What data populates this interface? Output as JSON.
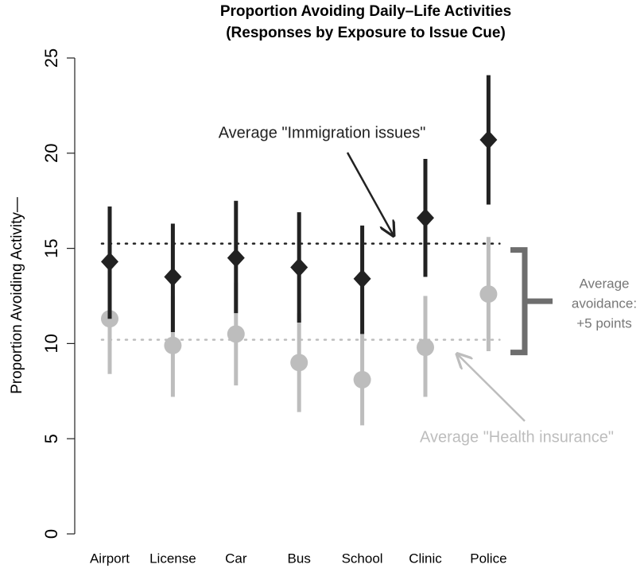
{
  "chart_data": {
    "type": "errorbar",
    "title": [
      "Proportion Avoiding Daily–Life Activities",
      "(Responses by Exposure to Issue Cue)"
    ],
    "ylabel": "Proportion Avoiding Activity—",
    "categories": [
      "Airport",
      "License",
      "Car",
      "Bus",
      "School",
      "Clinic",
      "Police"
    ],
    "series": [
      {
        "name": "Health insurance",
        "color": "#bdbdbd",
        "marker": "circle",
        "values": [
          11.3,
          9.9,
          10.5,
          9.0,
          8.1,
          9.8,
          12.6
        ],
        "lower": [
          8.4,
          7.2,
          7.8,
          6.4,
          5.7,
          7.2,
          9.6
        ],
        "upper": [
          14.2,
          12.5,
          13.2,
          11.6,
          10.6,
          12.5,
          15.6
        ]
      },
      {
        "name": "Immigration issues",
        "color": "#222222",
        "marker": "diamond",
        "values": [
          14.3,
          13.5,
          14.5,
          14.0,
          13.4,
          16.6,
          20.7
        ],
        "lower": [
          11.3,
          10.6,
          11.6,
          11.1,
          10.5,
          13.5,
          17.3
        ],
        "upper": [
          17.2,
          16.3,
          17.5,
          16.9,
          16.2,
          19.7,
          24.1
        ]
      }
    ],
    "reference_lines": [
      {
        "value": 15.25,
        "color": "#222222",
        "label": "Average \"Immigration issues\""
      },
      {
        "value": 10.2,
        "color": "#bdbdbd",
        "label": "Average \"Health insurance\""
      }
    ],
    "annotation": [
      "Average",
      "avoidance:",
      "+5 points"
    ],
    "ylim": [
      0,
      25
    ],
    "yticks": [
      0,
      5,
      10,
      15,
      20,
      25
    ]
  }
}
